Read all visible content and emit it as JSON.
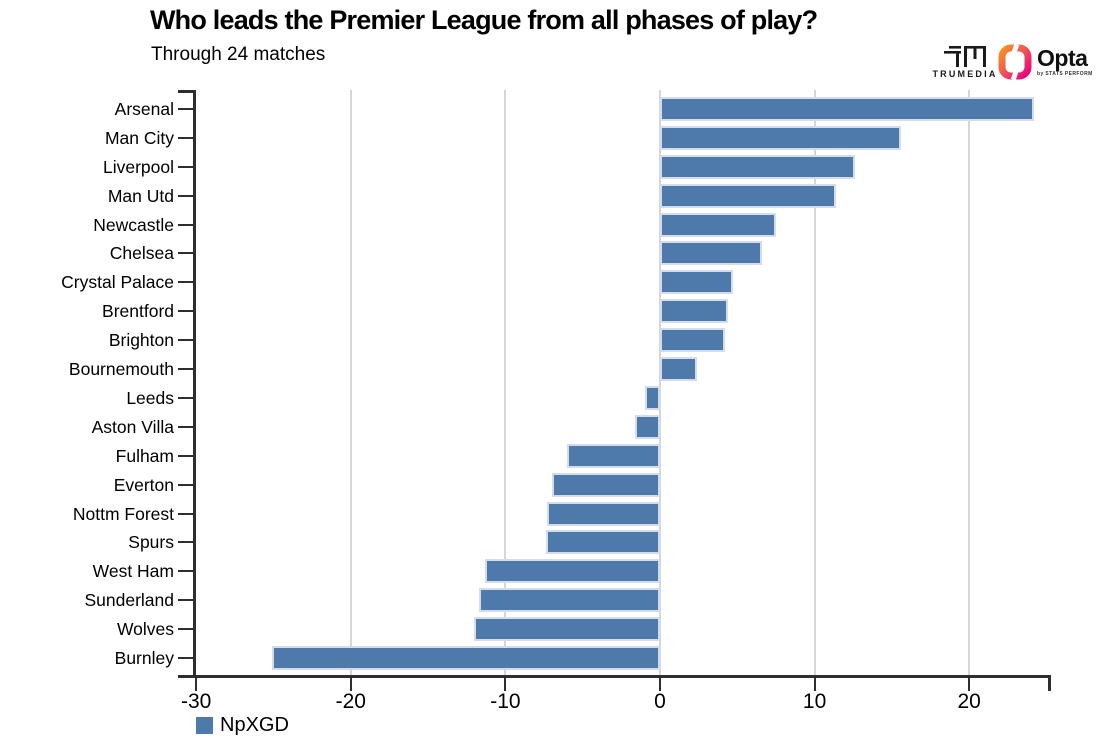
{
  "header": {
    "title": "Who leads the Premier League from all phases of play?",
    "subtitle": "Through 24 matches"
  },
  "branding": {
    "trumedia_label": "TRUMEDIA",
    "opta_label": "Opta",
    "opta_sub_label": "by STATS PERFORM",
    "opta_gradient_start": "#f7941d",
    "opta_gradient_end": "#e6007e"
  },
  "chart_data": {
    "type": "bar",
    "orientation": "horizontal",
    "title": "Who leads the Premier League from all phases of play?",
    "subtitle": "Through 24 matches",
    "series_name": "NpXGD",
    "categories": [
      "Arsenal",
      "Man City",
      "Liverpool",
      "Man Utd",
      "Newcastle",
      "Chelsea",
      "Crystal Palace",
      "Brentford",
      "Brighton",
      "Bournemouth",
      "Leeds",
      "Aston Villa",
      "Fulham",
      "Everton",
      "Nottm Forest",
      "Spurs",
      "West Ham",
      "Sunderland",
      "Wolves",
      "Burnley"
    ],
    "values": [
      24.2,
      15.6,
      12.6,
      11.4,
      7.5,
      6.6,
      4.7,
      4.4,
      4.2,
      2.4,
      -1,
      -1.6,
      -6,
      -7,
      -7.3,
      -7.4,
      -11.3,
      -11.7,
      -12,
      -25.1
    ],
    "xlim": [
      -30,
      25.1
    ],
    "xticks": [
      -30,
      -20,
      -10,
      0,
      10,
      20
    ],
    "grid": true,
    "legend_position": "bottom-left",
    "colors": {
      "bar": "#4d7aab",
      "bar_border": "#d4dcec",
      "grid": "#d6d6d6",
      "axis": "#2e2e2e"
    }
  },
  "legend": {
    "label": "NpXGD"
  }
}
